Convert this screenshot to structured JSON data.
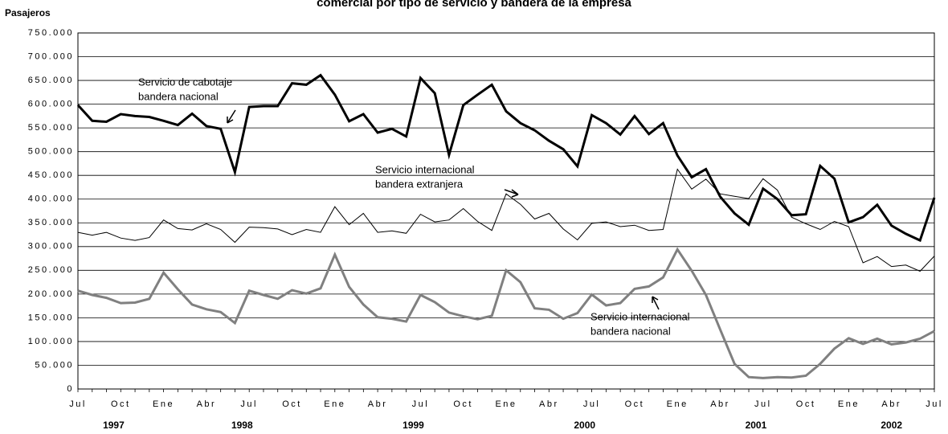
{
  "chart_data": {
    "type": "line",
    "title": "comercial por tipo de servicio y bandera de la empresa",
    "y_label": "Pasajeros",
    "categories": [
      "Jul",
      null,
      null,
      "Oct",
      null,
      null,
      "Ene",
      null,
      null,
      "Abr",
      null,
      null,
      "Jul",
      null,
      null,
      "Oct",
      null,
      null,
      "Ene",
      null,
      null,
      "Abr",
      null,
      null,
      "Jul",
      null,
      null,
      "Oct",
      null,
      null,
      "Ene",
      null,
      null,
      "Abr",
      null,
      null,
      "Jul",
      null,
      null,
      "Oct",
      null,
      null,
      "Ene",
      null,
      null,
      "Abr",
      null,
      null,
      "Jul",
      null,
      null,
      "Oct",
      null,
      null,
      "Ene",
      null,
      null,
      "Abr",
      null,
      null,
      "Jul"
    ],
    "year_labels": [
      "1997",
      "1998",
      "1999",
      "2000",
      "2001",
      "2002"
    ],
    "series": [
      {
        "color": "#000000",
        "width": 3,
        "values": [
          598000,
          565000,
          563000,
          579000,
          575000,
          573000,
          565000,
          556000,
          580000,
          554000,
          548000,
          457000,
          594000,
          596000,
          596000,
          644000,
          641000,
          661000,
          620000,
          564000,
          579000,
          540000,
          548000,
          532000,
          655000,
          623000,
          493000,
          598000,
          620000,
          641000,
          585000,
          560000,
          545000,
          523000,
          505000,
          469000,
          577000,
          560000,
          536000,
          575000,
          537000,
          560000,
          492000,
          446000,
          463000,
          405000,
          370000,
          346000,
          422000,
          400000,
          366000,
          368000,
          470000,
          443000,
          351000,
          362000,
          388000,
          344000,
          327000,
          313000,
          403000
        ]
      },
      {
        "color": "#000000",
        "width": 1,
        "values": [
          330000,
          324000,
          330000,
          318000,
          313000,
          319000,
          356000,
          338000,
          335000,
          348000,
          336000,
          309000,
          341000,
          340000,
          337000,
          325000,
          336000,
          330000,
          384000,
          346000,
          370000,
          330000,
          333000,
          328000,
          368000,
          352000,
          356000,
          380000,
          353000,
          334000,
          411000,
          389000,
          358000,
          370000,
          337000,
          314000,
          349000,
          352000,
          342000,
          345000,
          334000,
          336000,
          463000,
          421000,
          442000,
          411000,
          406000,
          401000,
          443000,
          419000,
          362000,
          348000,
          336000,
          353000,
          342000,
          266000,
          279000,
          258000,
          261000,
          248000,
          280000
        ]
      },
      {
        "color": "#808080",
        "width": 3,
        "values": [
          207000,
          198000,
          192000,
          181000,
          182000,
          190000,
          245000,
          210000,
          178000,
          168000,
          162000,
          139000,
          207000,
          198000,
          190000,
          208000,
          201000,
          212000,
          283000,
          215000,
          178000,
          151000,
          148000,
          142000,
          198000,
          183000,
          161000,
          153000,
          147000,
          154000,
          250000,
          225000,
          170000,
          167000,
          148000,
          160000,
          199000,
          176000,
          181000,
          211000,
          216000,
          235000,
          294000,
          249000,
          198000,
          125000,
          53000,
          25000,
          23000,
          25000,
          24000,
          28000,
          53000,
          85000,
          107000,
          95000,
          106000,
          94000,
          98000,
          106000,
          122000
        ]
      }
    ],
    "annotations": [
      {
        "lines": [
          "Servicio de cabotaje",
          "bandera nacional"
        ]
      },
      {
        "lines": [
          "Servicio internacional",
          "bandera extranjera"
        ]
      },
      {
        "lines": [
          "Servicio internacional",
          "bandera nacional"
        ]
      }
    ],
    "ylim": [
      0,
      750000
    ],
    "yticks": [
      0,
      {
        "value": 50000,
        "label": "50.000"
      },
      {
        "value": 100000,
        "label": "100.000"
      },
      {
        "value": 150000,
        "label": "150.000"
      },
      {
        "value": 200000,
        "label": "200.000"
      },
      {
        "value": 250000,
        "label": "250.000"
      },
      {
        "value": 300000,
        "label": "300.000"
      },
      {
        "value": 350000,
        "label": "350.000"
      },
      {
        "value": 400000,
        "label": "400.000"
      },
      {
        "value": 450000,
        "label": "450.000"
      },
      {
        "value": 500000,
        "label": "500.000"
      },
      {
        "value": 550000,
        "label": "550.000"
      },
      {
        "value": 600000,
        "label": "600.000"
      },
      {
        "value": 650000,
        "label": "650.000"
      },
      {
        "value": 700000,
        "label": "700.000"
      },
      {
        "value": 750000,
        "label": "750.000"
      }
    ],
    "grid": true
  }
}
